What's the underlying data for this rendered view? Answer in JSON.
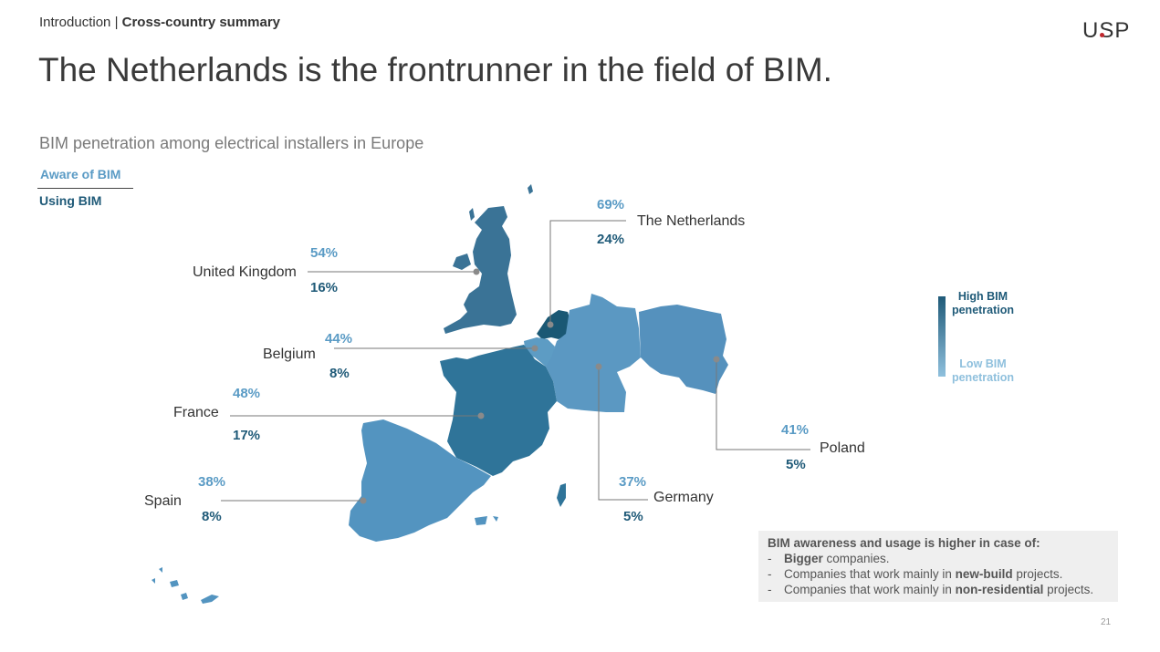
{
  "header": {
    "breadcrumb_section": "Introduction",
    "breadcrumb_separator": "|",
    "breadcrumb_page": "Cross-country summary",
    "logo": "USP"
  },
  "title": "The Netherlands is the frontrunner in the field of BIM.",
  "subtitle": "BIM penetration among electrical installers in Europe",
  "legend": {
    "aware_label": "Aware of BIM",
    "using_label": "Using BIM"
  },
  "countries": [
    {
      "name": "The Netherlands",
      "aware": "69%",
      "using": "24%"
    },
    {
      "name": "United Kingdom",
      "aware": "54%",
      "using": "16%"
    },
    {
      "name": "Belgium",
      "aware": "44%",
      "using": "8%"
    },
    {
      "name": "France",
      "aware": "48%",
      "using": "17%"
    },
    {
      "name": "Spain",
      "aware": "38%",
      "using": "8%"
    },
    {
      "name": "Germany",
      "aware": "37%",
      "using": "5%"
    },
    {
      "name": "Poland",
      "aware": "41%",
      "using": "5%"
    }
  ],
  "scale": {
    "high": "High BIM penetration",
    "low": "Low BIM penetration"
  },
  "colors": {
    "high": "#1f5a78",
    "low": "#8fc0dd",
    "aware": "#5a9bc5",
    "note_bg": "#efefef"
  },
  "note": {
    "heading": "BIM awareness and usage is higher in case of:",
    "bullet": "-",
    "items": [
      {
        "pre": "",
        "bold": "Bigger",
        "post": " companies."
      },
      {
        "pre": "Companies that work mainly in ",
        "bold": "new-build",
        "post": " projects."
      },
      {
        "pre": "Companies that work mainly in ",
        "bold": "non-residential",
        "post": " projects."
      }
    ]
  },
  "page_number": "21"
}
